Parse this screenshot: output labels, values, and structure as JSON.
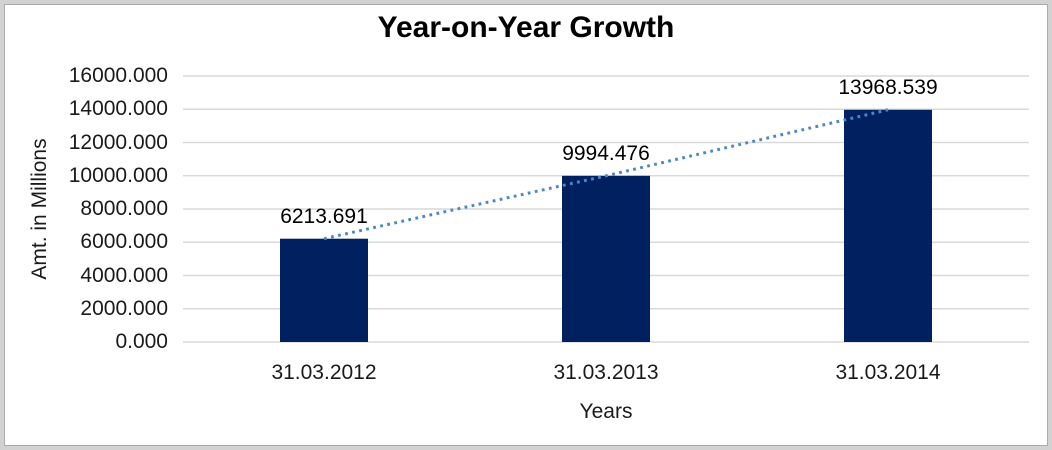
{
  "chart_data": {
    "type": "bar",
    "title": "Year-on-Year Growth",
    "xlabel": "Years",
    "ylabel": "Amt. in Millions",
    "categories": [
      "31.03.2012",
      "31.03.2013",
      "31.03.2014"
    ],
    "values": [
      6213.691,
      9994.476,
      13968.539
    ],
    "data_labels": [
      "6213.691",
      "9994.476",
      "13968.539"
    ],
    "y_ticks": [
      0,
      2000,
      4000,
      6000,
      8000,
      10000,
      12000,
      14000,
      16000
    ],
    "y_tick_labels": [
      "0.000",
      "2000.000",
      "4000.000",
      "6000.000",
      "8000.000",
      "10000.000",
      "12000.000",
      "14000.000",
      "16000.000"
    ],
    "ylim": [
      0,
      16000
    ],
    "grid": true,
    "legend": false,
    "trendline": true,
    "colors": {
      "bar": "#012060",
      "trendline": "#4e87c8",
      "gridline": "#d9d9d9",
      "text": "#1a1a1a",
      "title": "#000000",
      "border": "#d2d2d2"
    }
  }
}
